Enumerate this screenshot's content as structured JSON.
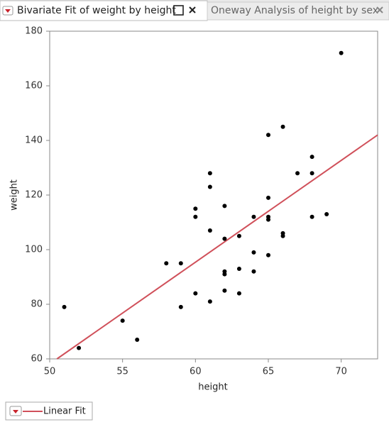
{
  "tabs": [
    {
      "label": "Bivariate Fit of weight by height"
    },
    {
      "label": "Oneway Analysis of height by sex"
    }
  ],
  "chart_data": {
    "type": "scatter",
    "x_label": "height",
    "y_label": "weight",
    "xlim": [
      50,
      72.5
    ],
    "ylim": [
      60,
      180
    ],
    "xticks": [
      50,
      55,
      60,
      65,
      70
    ],
    "yticks": [
      60,
      80,
      100,
      120,
      140,
      160,
      180
    ],
    "color": "#000000",
    "x": [
      51,
      52,
      55,
      56,
      58,
      59,
      59,
      60,
      60,
      60,
      61,
      61,
      61,
      61,
      62,
      62,
      62,
      62,
      62,
      63,
      63,
      63,
      64,
      64,
      64,
      65,
      65,
      65,
      65,
      65,
      66,
      66,
      66,
      67,
      68,
      68,
      68,
      69,
      70
    ],
    "values": [
      79,
      64,
      74,
      67,
      95,
      95,
      79,
      115,
      112,
      84,
      128,
      123,
      107,
      81,
      116,
      104,
      92,
      91,
      85,
      105,
      93,
      84,
      112,
      99,
      92,
      142,
      119,
      112,
      111,
      98,
      145,
      106,
      105,
      128,
      134,
      128,
      112,
      113,
      172
    ],
    "fit": {
      "name": "Linear Fit",
      "color": "#d0505a",
      "x": [
        50.5,
        72.5
      ],
      "values": [
        60,
        142
      ]
    }
  }
}
